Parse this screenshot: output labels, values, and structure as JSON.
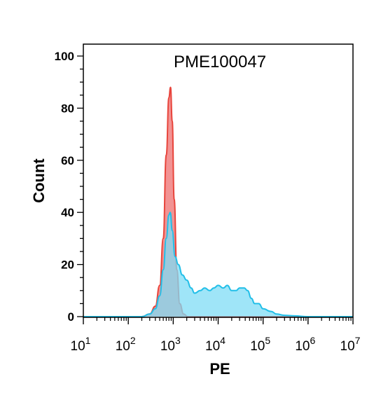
{
  "chart_data": {
    "type": "area",
    "title": "PME100047",
    "xlabel": "PE",
    "ylabel": "Count",
    "xscale": "log",
    "xlim": [
      10,
      10000000
    ],
    "ylim": [
      0,
      100
    ],
    "yticks": [
      0,
      20,
      40,
      60,
      80,
      100
    ],
    "xticks": [
      {
        "value": 10,
        "base": "10",
        "exp": "1"
      },
      {
        "value": 100,
        "base": "10",
        "exp": "2"
      },
      {
        "value": 1000,
        "base": "10",
        "exp": "3"
      },
      {
        "value": 10000,
        "base": "10",
        "exp": "4"
      },
      {
        "value": 100000,
        "base": "10",
        "exp": "5"
      },
      {
        "value": 1000000,
        "base": "10",
        "exp": "6"
      },
      {
        "value": 10000000,
        "base": "10",
        "exp": "7"
      }
    ],
    "grid": false,
    "legend": "none",
    "series": [
      {
        "color": "#f08080",
        "stroke": "#e8453c",
        "x": [
          10,
          100,
          200,
          300,
          400,
          500,
          600,
          700,
          800,
          870,
          950,
          1050,
          1200,
          1400,
          1700,
          2100,
          3000,
          10000000
        ],
        "y": [
          0,
          0,
          0,
          1,
          4,
          12,
          30,
          62,
          84,
          88,
          75,
          45,
          18,
          5,
          1,
          0,
          0,
          0
        ]
      },
      {
        "color": "#7fdcf5",
        "stroke": "#22bfe8",
        "x": [
          10,
          100,
          200,
          300,
          400,
          500,
          600,
          700,
          800,
          860,
          950,
          1100,
          1300,
          1600,
          2000,
          2500,
          3000,
          4000,
          5000,
          6500,
          8000,
          10000,
          13000,
          16000,
          20000,
          25000,
          30000,
          38000,
          45000,
          55000,
          65000,
          80000,
          100000,
          150000,
          200000,
          300000,
          500000,
          1000000,
          10000000
        ],
        "y": [
          0,
          0,
          0,
          1,
          3,
          8,
          18,
          30,
          39,
          40,
          33,
          23,
          20,
          16,
          14,
          11,
          9,
          10,
          11,
          10,
          11,
          12,
          11,
          12,
          10,
          10,
          11,
          11,
          10,
          7,
          5,
          5,
          3,
          2,
          1,
          0.5,
          0.3,
          0,
          0
        ]
      }
    ]
  }
}
